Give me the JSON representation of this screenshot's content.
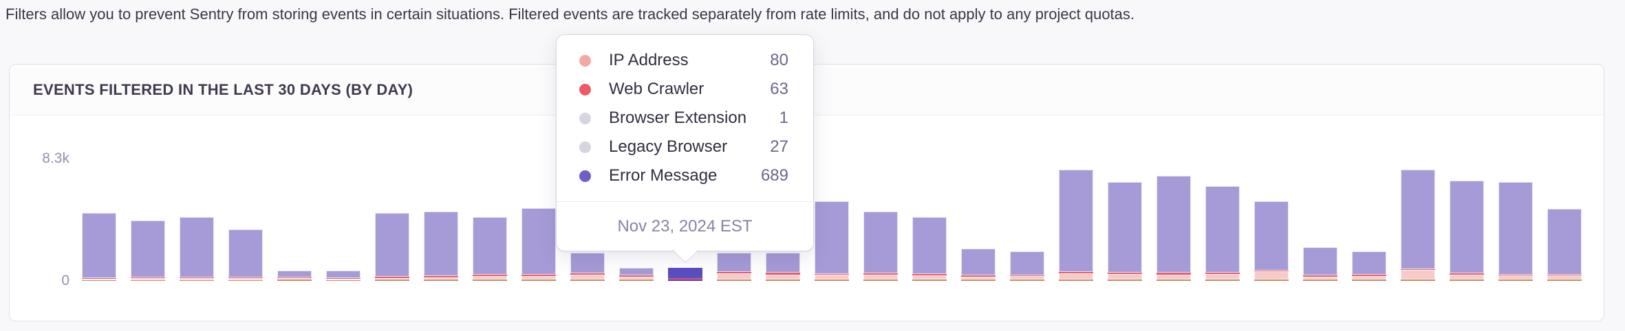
{
  "page": {
    "description": "Filters allow you to prevent Sentry from storing events in certain situations. Filtered events are tracked separately from rate limits, and do not apply to any project quotas."
  },
  "panel": {
    "title": "EVENTS FILTERED IN THE LAST 30 DAYS (BY DAY)"
  },
  "axis": {
    "y_max_label": "8.3k",
    "y_min_label": "0"
  },
  "tooltip": {
    "items": [
      {
        "label": "IP Address",
        "value": "80",
        "color": "#f3a9a3"
      },
      {
        "label": "Web Crawler",
        "value": "63",
        "color": "#ed5b66"
      },
      {
        "label": "Browser Extension",
        "value": "1",
        "color": "#d9d5e0"
      },
      {
        "label": "Legacy Browser",
        "value": "27",
        "color": "#d9d5e0"
      },
      {
        "label": "Error Message",
        "value": "689",
        "color": "#6c5fc7"
      }
    ],
    "date": "Nov 23, 2024 EST"
  },
  "colors": {
    "segments": {
      "legacy": "#c08d67",
      "ip": "#f7cac8",
      "crawler": "#e8596a",
      "error": "#a69bd7"
    },
    "highlight": {
      "legacy": "#4239ae",
      "ip": "#5b4dc2",
      "crawler": "#e4566b",
      "error": "#5b4dc2"
    },
    "page_background": "#f8f8fa",
    "panel_background": "#ffffff",
    "panel_border": "#e1dde8"
  },
  "chart_data": {
    "type": "bar",
    "stacked": true,
    "title": "Events filtered in the last 30 days (by day)",
    "xlabel": "",
    "ylabel": "",
    "ylim": [
      0,
      8300
    ],
    "y_ticks": [
      "0",
      "8.3k"
    ],
    "x_tick_labels_visible": false,
    "grid": false,
    "legend_position": "none (series shown in hover tooltip)",
    "series_names": [
      "Legacy Browser",
      "IP Address",
      "Web Crawler",
      "Error Message"
    ],
    "highlighted_day": {
      "index": 13,
      "date": "Nov 23, 2024 EST",
      "breakdown": {
        "IP Address": 80,
        "Web Crawler": 63,
        "Browser Extension": 1,
        "Legacy Browser": 27,
        "Error Message": 689
      },
      "total": 860
    },
    "bars": [
      {
        "legacy": 45,
        "ip": 90,
        "crawler": 45,
        "error": 4420
      },
      {
        "legacy": 45,
        "ip": 140,
        "crawler": 45,
        "error": 3870
      },
      {
        "legacy": 45,
        "ip": 140,
        "crawler": 45,
        "error": 4070
      },
      {
        "legacy": 45,
        "ip": 140,
        "crawler": 45,
        "error": 3270
      },
      {
        "legacy": 90,
        "ip": 90,
        "crawler": 45,
        "error": 495
      },
      {
        "legacy": 45,
        "ip": 90,
        "crawler": 45,
        "error": 540
      },
      {
        "legacy": 90,
        "ip": 90,
        "crawler": 90,
        "error": 4330
      },
      {
        "legacy": 90,
        "ip": 140,
        "crawler": 90,
        "error": 4380
      },
      {
        "legacy": 90,
        "ip": 230,
        "crawler": 90,
        "error": 3890
      },
      {
        "legacy": 90,
        "ip": 230,
        "crawler": 90,
        "error": 4490
      },
      {
        "legacy": 90,
        "ip": 330,
        "crawler": 90,
        "error": 1390
      },
      {
        "legacy": 90,
        "ip": 190,
        "crawler": 90,
        "error": 530
      },
      {
        "legacy": 27,
        "ip": 80,
        "crawler": 63,
        "error": 690,
        "highlighted": true
      },
      {
        "legacy": 90,
        "ip": 420,
        "crawler": 90,
        "error": 1300
      },
      {
        "legacy": 90,
        "ip": 330,
        "crawler": 140,
        "error": 1340
      },
      {
        "legacy": 90,
        "ip": 330,
        "crawler": 45,
        "error": 4935
      },
      {
        "legacy": 90,
        "ip": 330,
        "crawler": 90,
        "error": 4190
      },
      {
        "legacy": 90,
        "ip": 280,
        "crawler": 90,
        "error": 3840
      },
      {
        "legacy": 90,
        "ip": 190,
        "crawler": 90,
        "error": 1830
      },
      {
        "legacy": 90,
        "ip": 230,
        "crawler": 45,
        "error": 1635
      },
      {
        "legacy": 90,
        "ip": 420,
        "crawler": 90,
        "error": 6900
      },
      {
        "legacy": 90,
        "ip": 370,
        "crawler": 90,
        "error": 6150
      },
      {
        "legacy": 90,
        "ip": 330,
        "crawler": 140,
        "error": 6540
      },
      {
        "legacy": 90,
        "ip": 370,
        "crawler": 90,
        "error": 5850
      },
      {
        "legacy": 90,
        "ip": 560,
        "crawler": 45,
        "error": 4705
      },
      {
        "legacy": 90,
        "ip": 190,
        "crawler": 90,
        "error": 1930
      },
      {
        "legacy": 90,
        "ip": 230,
        "crawler": 90,
        "error": 1590
      },
      {
        "legacy": 90,
        "ip": 650,
        "crawler": 45,
        "error": 6715
      },
      {
        "legacy": 90,
        "ip": 330,
        "crawler": 90,
        "error": 6290
      },
      {
        "legacy": 90,
        "ip": 280,
        "crawler": 45,
        "error": 6285
      },
      {
        "legacy": 90,
        "ip": 280,
        "crawler": 45,
        "error": 4485
      }
    ]
  }
}
